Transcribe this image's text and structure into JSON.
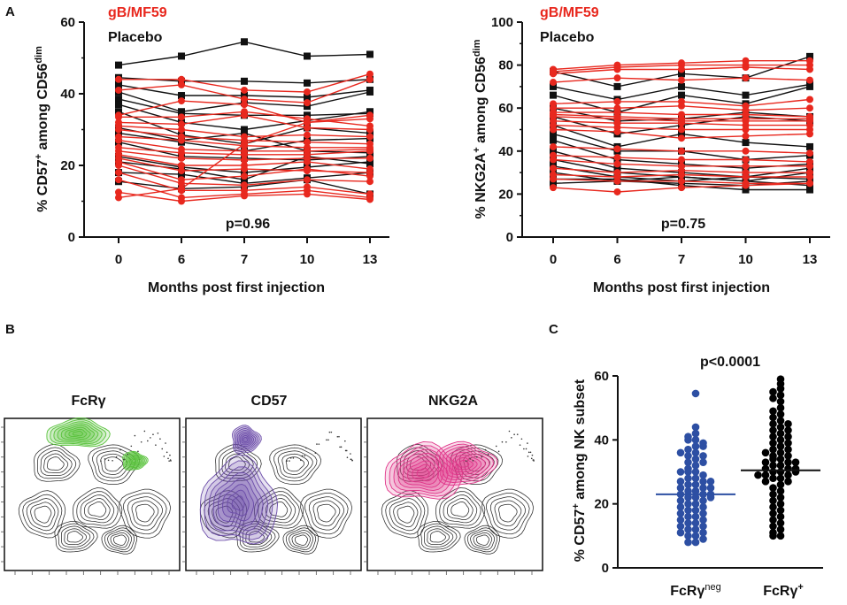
{
  "panels": {
    "a": "A",
    "b": "B",
    "c": "C"
  },
  "colors": {
    "gB": "#e8281e",
    "placebo": "#111111",
    "green": "#57c23a",
    "purple": "#6a4aa8",
    "pink": "#e0358a",
    "blue": "#2d4fa3",
    "black": "#000000"
  },
  "chart_data": [
    {
      "id": "A1",
      "type": "line",
      "title": "",
      "xlabel": "Months post first injection",
      "ylabel_main": "% CD57",
      "ylabel_sup": "+",
      "ylabel_mid": " among CD56",
      "ylabel_sup2": "dim",
      "categories": [
        "0",
        "6",
        "7",
        "10",
        "13"
      ],
      "ylim": [
        0,
        60
      ],
      "yticks": [
        "0",
        "20",
        "40",
        "60"
      ],
      "legend": [
        "gB/MF59",
        "Placebo"
      ],
      "pvalue": "p=0.96",
      "series_placebo": [
        [
          48,
          50.5,
          54.5,
          50.5,
          51
        ],
        [
          44.5,
          43.5,
          43.5,
          43,
          44
        ],
        [
          42.5,
          39.5,
          39.5,
          39,
          41
        ],
        [
          40.5,
          35,
          37.5,
          36.5,
          40.5
        ],
        [
          38.5,
          34.5,
          34,
          34,
          34.5
        ],
        [
          37,
          32,
          30,
          32.5,
          35
        ],
        [
          35,
          28.5,
          26,
          30.5,
          29
        ],
        [
          30.5,
          27,
          29,
          24,
          23.5
        ],
        [
          29,
          26.5,
          24,
          27,
          27.5
        ],
        [
          26.5,
          22.5,
          22,
          21.5,
          22.5
        ],
        [
          22.5,
          19.5,
          18,
          19.5,
          21
        ],
        [
          21,
          19,
          16,
          22.5,
          20.5
        ],
        [
          18,
          17.5,
          15,
          16.5,
          18
        ],
        [
          15.5,
          13.5,
          14,
          16,
          12
        ]
      ],
      "series_gB": [
        [
          44,
          44,
          41,
          40.5,
          45.5
        ],
        [
          41,
          42.5,
          38.5,
          37.5,
          44
        ],
        [
          34,
          38,
          37,
          32,
          33
        ],
        [
          33.5,
          33.5,
          35,
          33,
          31
        ],
        [
          32,
          31.5,
          34,
          30.5,
          30
        ],
        [
          31,
          30,
          28,
          28.5,
          28
        ],
        [
          30,
          28,
          27,
          26.5,
          26
        ],
        [
          28,
          27,
          25.5,
          25,
          25
        ],
        [
          27,
          24.5,
          24,
          24,
          24.5
        ],
        [
          25,
          23.5,
          23,
          23,
          24
        ],
        [
          24,
          22,
          21.5,
          22,
          22
        ],
        [
          23,
          20,
          20,
          21,
          19
        ],
        [
          22,
          18.5,
          19,
          18.5,
          18
        ],
        [
          21,
          16,
          17,
          19,
          17
        ],
        [
          20,
          15,
          14.5,
          16,
          15.5
        ],
        [
          18,
          13,
          13,
          14,
          12
        ],
        [
          16,
          11,
          12,
          13,
          11
        ],
        [
          12.5,
          10,
          11.5,
          12,
          10.5
        ],
        [
          11,
          13.5,
          26,
          32,
          34
        ]
      ]
    },
    {
      "id": "A2",
      "type": "line",
      "title": "",
      "xlabel": "Months post first injection",
      "ylabel_main": "% NKG2A",
      "ylabel_sup": "+",
      "ylabel_mid": " among CD56",
      "ylabel_sup2": "dim",
      "categories": [
        "0",
        "6",
        "7",
        "10",
        "13"
      ],
      "ylim": [
        0,
        100
      ],
      "yticks": [
        "0",
        "20",
        "40",
        "60",
        "80",
        "100"
      ],
      "legend": [
        "gB/MF59",
        "Placebo"
      ],
      "pvalue": "p=0.75",
      "series_placebo": [
        [
          77,
          70,
          76,
          74,
          84
        ],
        [
          70,
          64,
          70,
          66,
          71
        ],
        [
          66,
          58,
          66,
          62,
          70
        ],
        [
          60,
          54,
          55,
          58,
          56
        ],
        [
          56,
          48,
          52,
          56,
          54
        ],
        [
          52,
          42,
          48,
          44,
          42
        ],
        [
          48,
          40,
          40,
          36,
          38
        ],
        [
          45,
          36,
          34,
          32,
          34
        ],
        [
          40,
          32,
          30,
          28,
          32
        ],
        [
          36,
          30,
          28,
          26,
          30
        ],
        [
          33,
          28,
          26,
          28,
          27
        ],
        [
          30,
          26,
          28,
          26,
          24
        ],
        [
          27,
          27,
          24,
          22,
          22
        ],
        [
          25,
          26,
          25,
          24,
          26
        ]
      ],
      "series_gB": [
        [
          78,
          80,
          81,
          82,
          82
        ],
        [
          77,
          79,
          80,
          80,
          80
        ],
        [
          76,
          78,
          78,
          79,
          78
        ],
        [
          72,
          74,
          73,
          74,
          73
        ],
        [
          62,
          63,
          63,
          61,
          64
        ],
        [
          60,
          60,
          61,
          59,
          60
        ],
        [
          58,
          58,
          57,
          57,
          56
        ],
        [
          57,
          56,
          55,
          55,
          55
        ],
        [
          56,
          55,
          54,
          54,
          54
        ],
        [
          54,
          53,
          53,
          52,
          52
        ],
        [
          52,
          51,
          50,
          50,
          50
        ],
        [
          50,
          49,
          46,
          47,
          48
        ],
        [
          42,
          41,
          40,
          40,
          39
        ],
        [
          38,
          37,
          36,
          36,
          35
        ],
        [
          36,
          34,
          33,
          33,
          33
        ],
        [
          32,
          30,
          31,
          30,
          30
        ],
        [
          29,
          28,
          29,
          28,
          28
        ],
        [
          27,
          26,
          26,
          25,
          25
        ],
        [
          23,
          21,
          23,
          24,
          25
        ]
      ]
    },
    {
      "id": "C",
      "type": "scatter",
      "title": "p<0.0001",
      "xlabel": "",
      "ylabel_main": "% CD57",
      "ylabel_sup": "+",
      "ylabel_mid": " among NK subset",
      "ylabel_sup2": "",
      "categories": [
        "FcRγ",
        "FcRγ"
      ],
      "category_sup": [
        "neg",
        "+"
      ],
      "ylim": [
        0,
        60
      ],
      "yticks": [
        "0",
        "20",
        "40",
        "60"
      ],
      "means": [
        23,
        30.5
      ],
      "groups": [
        [
          54.5,
          44,
          42,
          40,
          40,
          38,
          37,
          36,
          35,
          34,
          33,
          32,
          31,
          30,
          30,
          29,
          28,
          28,
          27,
          27,
          26,
          26,
          25,
          25,
          24,
          24,
          23,
          23,
          23,
          22,
          22,
          21,
          21,
          20,
          20,
          19,
          19,
          18,
          18,
          17,
          17,
          16,
          16,
          15,
          15,
          14,
          14,
          13,
          13,
          12,
          12,
          11,
          11,
          10,
          10,
          9,
          8,
          8,
          22,
          25,
          27,
          30,
          33,
          35,
          36,
          38,
          39,
          41
        ],
        [
          59,
          57.5,
          56,
          55,
          54,
          53,
          52,
          50,
          49,
          48,
          47,
          46,
          45,
          44,
          43,
          42,
          41,
          40,
          39,
          38,
          37,
          36,
          35,
          34,
          34,
          33,
          33,
          32,
          32,
          31,
          31,
          30,
          30,
          29,
          29,
          28,
          28,
          27,
          27,
          26,
          25,
          24,
          23,
          22,
          21,
          20,
          19,
          18,
          17,
          16,
          15,
          14,
          13,
          12,
          11,
          10,
          10,
          35,
          37,
          39,
          41,
          43,
          45,
          31,
          30,
          29,
          33,
          36
        ]
      ]
    }
  ],
  "flow": {
    "panels": [
      {
        "label": "FcRγ"
      },
      {
        "label": "CD57"
      },
      {
        "label": "NKG2A"
      }
    ]
  }
}
